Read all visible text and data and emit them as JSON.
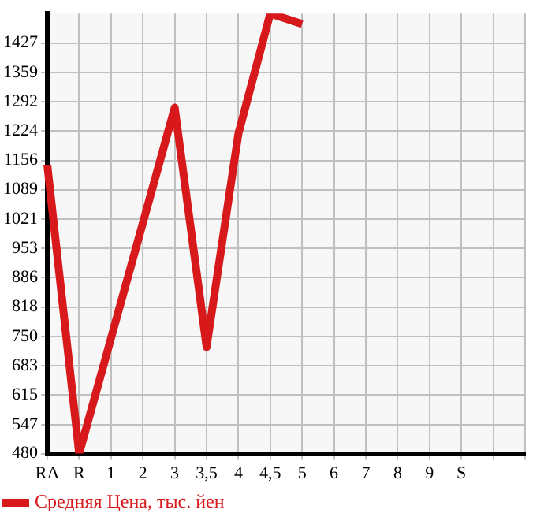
{
  "chart_data": {
    "type": "line",
    "categories": [
      "RA",
      "R",
      "1",
      "2",
      "3",
      "3,5",
      "4",
      "4,5",
      "5",
      "6",
      "7",
      "8",
      "9",
      "S",
      null,
      null
    ],
    "series": [
      {
        "name": "Средняя Цена, тыс. йен",
        "color": "#d7191c",
        "values": [
          1146,
          480,
          746,
          1012,
          1278,
          726,
          1218,
          1495,
          1471,
          null,
          null,
          null,
          null,
          null,
          null,
          null
        ]
      }
    ],
    "ylim": [
      480,
      1495
    ],
    "yticks": [
      480,
      547,
      615,
      683,
      750,
      818,
      886,
      953,
      1021,
      1089,
      1156,
      1224,
      1292,
      1359,
      1427
    ],
    "grid": true,
    "legend": "bottom left",
    "marker": "none",
    "line_style": "solid"
  }
}
